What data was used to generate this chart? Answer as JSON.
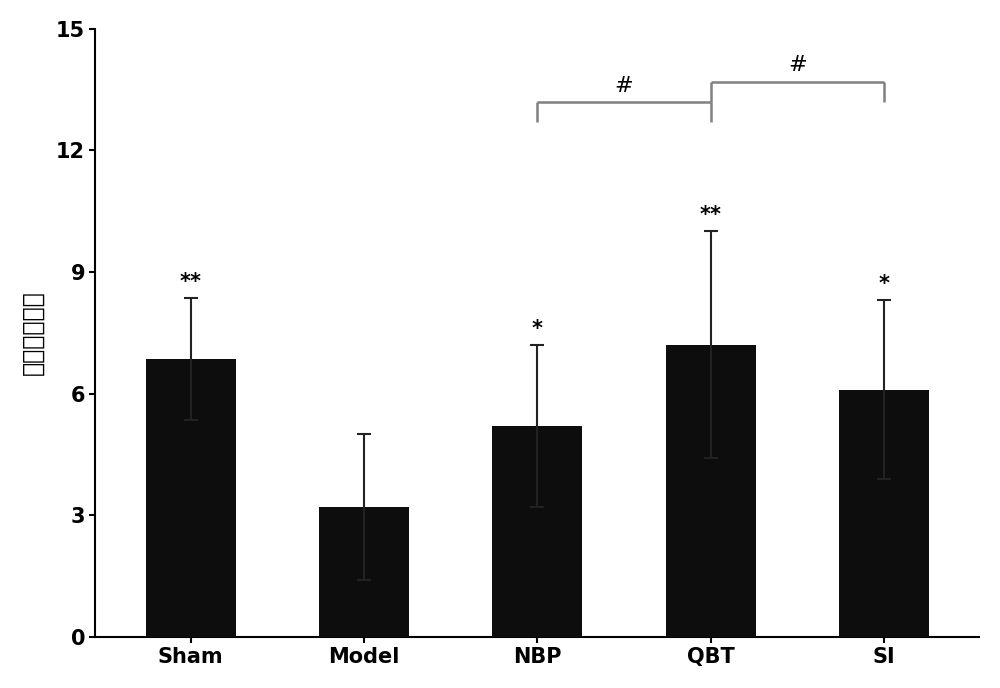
{
  "categories": [
    "Sham",
    "Model",
    "NBP",
    "QBT",
    "SI"
  ],
  "values": [
    6.85,
    3.2,
    5.2,
    7.2,
    6.1
  ],
  "errors": [
    1.5,
    1.8,
    2.0,
    2.8,
    2.2
  ],
  "bar_color": "#0d0d0d",
  "bar_width": 0.52,
  "ylabel": "穿越平台次数",
  "ylim": [
    0,
    15
  ],
  "yticks": [
    0,
    3,
    6,
    9,
    12,
    15
  ],
  "significance_above": [
    "**",
    "",
    "*",
    "**",
    "*"
  ],
  "sig_fontsize": 15,
  "ylabel_fontsize": 17,
  "tick_fontsize": 15,
  "xtick_fontsize": 15,
  "background_color": "#ffffff",
  "bracket_color": "gray",
  "bracket_lw": 1.8,
  "bracket_label": "#",
  "bracket_label_fontsize": 16,
  "bracket1_yi": 13.2,
  "bracket2_yi": 13.2,
  "bracket_drop": 0.5
}
